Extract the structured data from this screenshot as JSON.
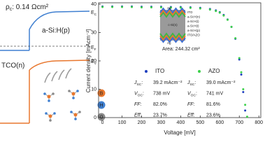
{
  "diagram": {
    "contact_resistance": {
      "symbol": "ρ",
      "sub": "c",
      "text": ": 0.14 Ωcm²"
    },
    "layer_p": "a-Si:H(p)",
    "layer_n": "TCO(n)",
    "levels": [
      {
        "main": "E",
        "sub": "C"
      },
      {
        "main": "E",
        "sub": "F"
      },
      {
        "main": "E",
        "sub": "V"
      }
    ],
    "atoms": [
      {
        "label": "B",
        "color": "#e8772e"
      },
      {
        "label": "H",
        "color": "#3f7fd0"
      },
      {
        "label": "C",
        "color": "#8a8a8a"
      }
    ]
  },
  "chart_data": {
    "type": "scatter",
    "xlabel": "Voltage [mV]",
    "ylabel": "Current density [mAcm⁻²]",
    "x": [
      0,
      50,
      100,
      150,
      200,
      250,
      300,
      350,
      400,
      450,
      500,
      550,
      580,
      600,
      620,
      640,
      660,
      680,
      700,
      710,
      720,
      730,
      740
    ],
    "series": [
      {
        "name": "ITO",
        "color": "#1f3fbf",
        "values": [
          39.2,
          39.2,
          39.2,
          39.2,
          39.1,
          39.1,
          39.1,
          39.0,
          39.0,
          38.9,
          38.7,
          38.3,
          37.8,
          37.2,
          36.2,
          34.6,
          32.0,
          27.8,
          20.5,
          15.2,
          9.0,
          2.5,
          null
        ]
      },
      {
        "name": "AZO",
        "color": "#3cd04a",
        "values": [
          39.0,
          39.0,
          39.0,
          39.0,
          38.9,
          38.9,
          38.9,
          38.8,
          38.8,
          38.7,
          38.5,
          38.1,
          37.6,
          37.0,
          36.0,
          34.5,
          32.0,
          28.0,
          21.0,
          16.0,
          10.0,
          4.5,
          0.3
        ]
      }
    ],
    "xlim": [
      -20,
      810
    ],
    "ylim": [
      0,
      40
    ],
    "xticks": [
      0,
      100,
      200,
      300,
      400,
      500,
      600,
      700,
      800
    ],
    "yticks": [
      0,
      10,
      20,
      30,
      40
    ],
    "grid": false,
    "inset": {
      "area": "Area: 244.32 cm²",
      "center": "c-Si(n)",
      "electrodes": [
        "Ag",
        "Ag"
      ],
      "layers": [
        {
          "name": "ITO",
          "color": "#3f6fd0"
        },
        {
          "name": "a-Si:H(n)",
          "color": "#e8772e"
        },
        {
          "name": "a-Si:H(i)",
          "color": "#3cb84a"
        },
        {
          "name": "a-Si:H(i)",
          "color": "#3cb84a"
        },
        {
          "name": "a-Si:H(p)",
          "color": "#e8772e"
        },
        {
          "name": "ITO/AZO",
          "color": "#3f6fd0"
        }
      ]
    },
    "stats": {
      "labels": [
        {
          "main": "J",
          "sub": "SC",
          "tail": ":"
        },
        {
          "main": "V",
          "sub": "OC",
          "tail": ":"
        },
        {
          "main": "FF",
          "tail": ":"
        },
        {
          "main": "Eff",
          "tail": ":"
        }
      ],
      "ITO": [
        "39.2 mAcm⁻²",
        "738 mV",
        "82.0%",
        "23.7%"
      ],
      "AZO": [
        "39.0 mAcm⁻²",
        "741 mV",
        "81.6%",
        "23.6%"
      ]
    }
  }
}
